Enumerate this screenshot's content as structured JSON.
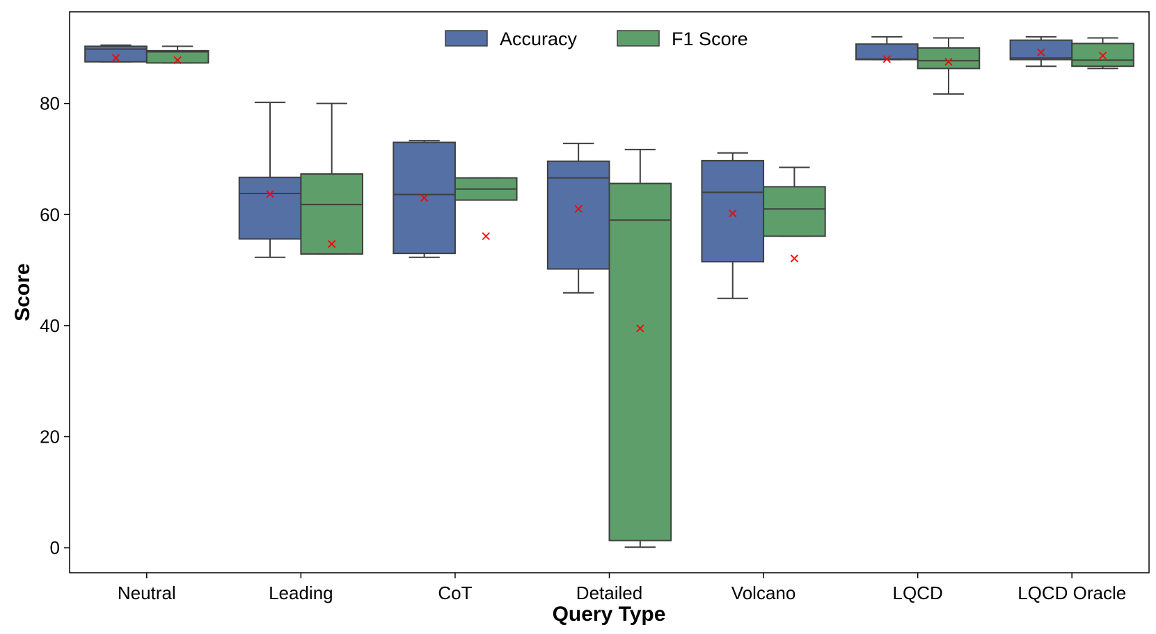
{
  "chart_data": {
    "type": "box",
    "title": "",
    "xlabel": "Query Type",
    "ylabel": "Score",
    "ylim": [
      -4.5,
      96.5
    ],
    "yticks": [
      0,
      20,
      40,
      60,
      80
    ],
    "grid": false,
    "legend_position": "top-center",
    "categories": [
      "Neutral",
      "Leading",
      "CoT",
      "Detailed",
      "Volcano",
      "LQCD",
      "LQCD Oracle"
    ],
    "series": [
      {
        "name": "Accuracy",
        "color": "#5470A4",
        "boxes": [
          {
            "whisker_low": 87.5,
            "q1": 87.5,
            "median": 89.8,
            "q3": 90.3,
            "whisker_high": 90.5,
            "mean": 88.2
          },
          {
            "whisker_low": 52.3,
            "q1": 55.6,
            "median": 63.8,
            "q3": 66.7,
            "whisker_high": 80.2,
            "mean": 63.7
          },
          {
            "whisker_low": 52.3,
            "q1": 53.0,
            "median": 63.6,
            "q3": 73.0,
            "whisker_high": 73.3,
            "mean": 63.0
          },
          {
            "whisker_low": 45.9,
            "q1": 50.2,
            "median": 66.6,
            "q3": 69.6,
            "whisker_high": 72.8,
            "mean": 61.0
          },
          {
            "whisker_low": 44.9,
            "q1": 51.5,
            "median": 64.0,
            "q3": 69.7,
            "whisker_high": 71.1,
            "mean": 60.2
          },
          {
            "whisker_low": 87.9,
            "q1": 87.9,
            "median": 88.0,
            "q3": 90.7,
            "whisker_high": 92.0,
            "mean": 88.0
          },
          {
            "whisker_low": 86.7,
            "q1": 87.9,
            "median": 88.2,
            "q3": 91.4,
            "whisker_high": 92.0,
            "mean": 89.2
          }
        ]
      },
      {
        "name": "F1 Score",
        "color": "#5E9E6A",
        "boxes": [
          {
            "whisker_low": 87.3,
            "q1": 87.3,
            "median": 89.3,
            "q3": 89.5,
            "whisker_high": 90.3,
            "mean": 87.8
          },
          {
            "whisker_low": 52.9,
            "q1": 52.9,
            "median": 61.8,
            "q3": 67.3,
            "whisker_high": 80.0,
            "mean": 54.7
          },
          {
            "whisker_low": 62.6,
            "q1": 62.6,
            "median": 64.6,
            "q3": 66.6,
            "whisker_high": 66.6,
            "mean": 56.1
          },
          {
            "whisker_low": 0.1,
            "q1": 1.3,
            "median": 59.0,
            "q3": 65.6,
            "whisker_high": 71.7,
            "mean": 39.5
          },
          {
            "whisker_low": 56.1,
            "q1": 56.1,
            "median": 61.0,
            "q3": 65.0,
            "whisker_high": 68.5,
            "mean": 52.1
          },
          {
            "whisker_low": 81.7,
            "q1": 86.3,
            "median": 87.7,
            "q3": 90.0,
            "whisker_high": 91.8,
            "mean": 87.5
          },
          {
            "whisker_low": 86.3,
            "q1": 86.7,
            "median": 87.8,
            "q3": 90.8,
            "whisker_high": 91.8,
            "mean": 88.6
          }
        ]
      }
    ],
    "mean_marker": {
      "symbol": "×",
      "color": "#FF0000"
    },
    "legend": [
      "Accuracy",
      "F1 Score"
    ]
  }
}
